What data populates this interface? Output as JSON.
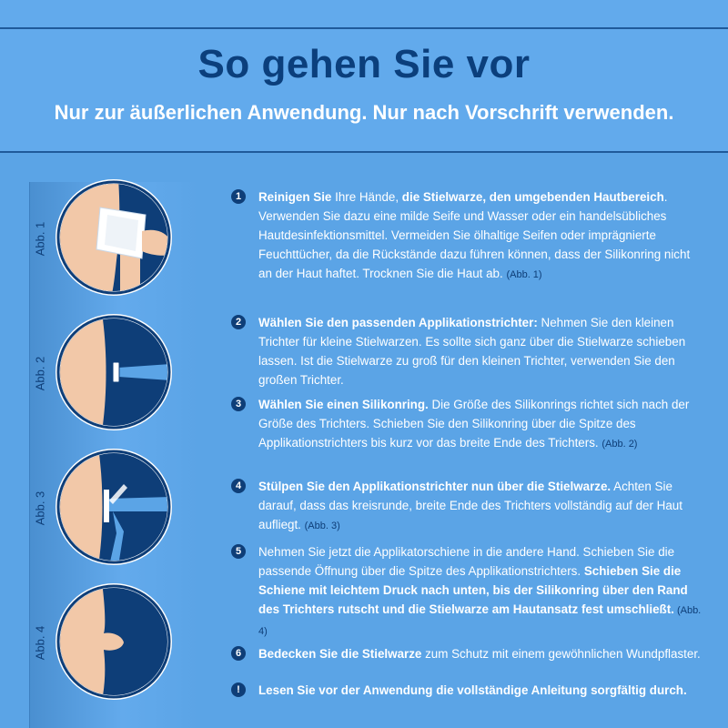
{
  "header": {
    "title": "So gehen Sie vor",
    "subtitle": "Nur zur äußerlichen Anwendung. Nur nach Vorschrift verwenden."
  },
  "figures": [
    {
      "label": "Abb. 1"
    },
    {
      "label": "Abb. 2"
    },
    {
      "label": "Abb. 3"
    },
    {
      "label": "Abb. 4"
    }
  ],
  "steps": [
    {
      "num": "1",
      "parts": [
        {
          "t": "Reinigen Sie",
          "s": "b"
        },
        {
          "t": " Ihre Hände, ",
          "s": ""
        },
        {
          "t": "die Stielwarze, den umgebenden Hautbereich",
          "s": "b"
        },
        {
          "t": ". Verwenden Sie dazu eine milde Seife und Wasser oder ein handelsübliches Hautdesinfektionsmittel. Vermeiden Sie ölhaltige Seifen oder imprägnierte Feuchttücher, da die Rückstände dazu führen können, dass der Silikonring nicht an der Haut haftet. Trocknen Sie die Haut ab. ",
          "s": ""
        },
        {
          "t": "(Abb. 1)",
          "s": "ref"
        }
      ]
    },
    {
      "num": "2",
      "parts": [
        {
          "t": "Wählen Sie den passenden Applikationstrichter:",
          "s": "b"
        },
        {
          "t": " Nehmen Sie den kleinen Trichter für kleine Stielwarzen. Es sollte sich ganz über die Stielwarze schieben lassen. Ist die Stielwarze zu groß für den kleinen Trichter, verwenden Sie den großen Trichter.",
          "s": ""
        }
      ]
    },
    {
      "num": "3",
      "parts": [
        {
          "t": "Wählen Sie einen Silikonring.",
          "s": "b"
        },
        {
          "t": " Die Größe des Silikonrings richtet sich nach der Größe des Trichters. Schieben Sie den Silikonring über die Spitze des Applikationstrichters bis kurz vor das breite Ende des Trichters. ",
          "s": ""
        },
        {
          "t": "(Abb. 2)",
          "s": "ref"
        }
      ]
    },
    {
      "num": "4",
      "parts": [
        {
          "t": "Stülpen Sie den Applikationstrichter nun über die Stielwarze.",
          "s": "b"
        },
        {
          "t": " Achten Sie darauf, dass das kreisrunde, breite Ende des Trichters vollständig auf der Haut aufliegt. ",
          "s": ""
        },
        {
          "t": "(Abb. 3)",
          "s": "ref"
        }
      ]
    },
    {
      "num": "5",
      "parts": [
        {
          "t": "Nehmen Sie jetzt die Applikatorschiene in die andere Hand. Schieben Sie die passende Öffnung über die Spitze des Applikationstrichters. ",
          "s": ""
        },
        {
          "t": "Schieben Sie die Schiene mit leichtem Druck nach unten, bis der Silikonring über den Rand des Trichters rutscht und die Stielwarze am Hautansatz fest umschließt.",
          "s": "b"
        },
        {
          "t": " (Abb. 4)",
          "s": "ref"
        }
      ]
    },
    {
      "num": "6",
      "parts": [
        {
          "t": "Bedecken Sie die Stielwarze",
          "s": "b"
        },
        {
          "t": " zum Schutz mit einem gewöhnlichen Wundpflaster.",
          "s": ""
        }
      ]
    },
    {
      "num": "!",
      "parts": [
        {
          "t": "Lesen Sie vor der Anwendung die vollständige Anleitung sorgfältig durch.",
          "s": "b"
        }
      ]
    }
  ],
  "colors": {
    "background": "#5ba4e6",
    "dark_blue": "#0e3e78",
    "skin": "#f2c8a8"
  }
}
